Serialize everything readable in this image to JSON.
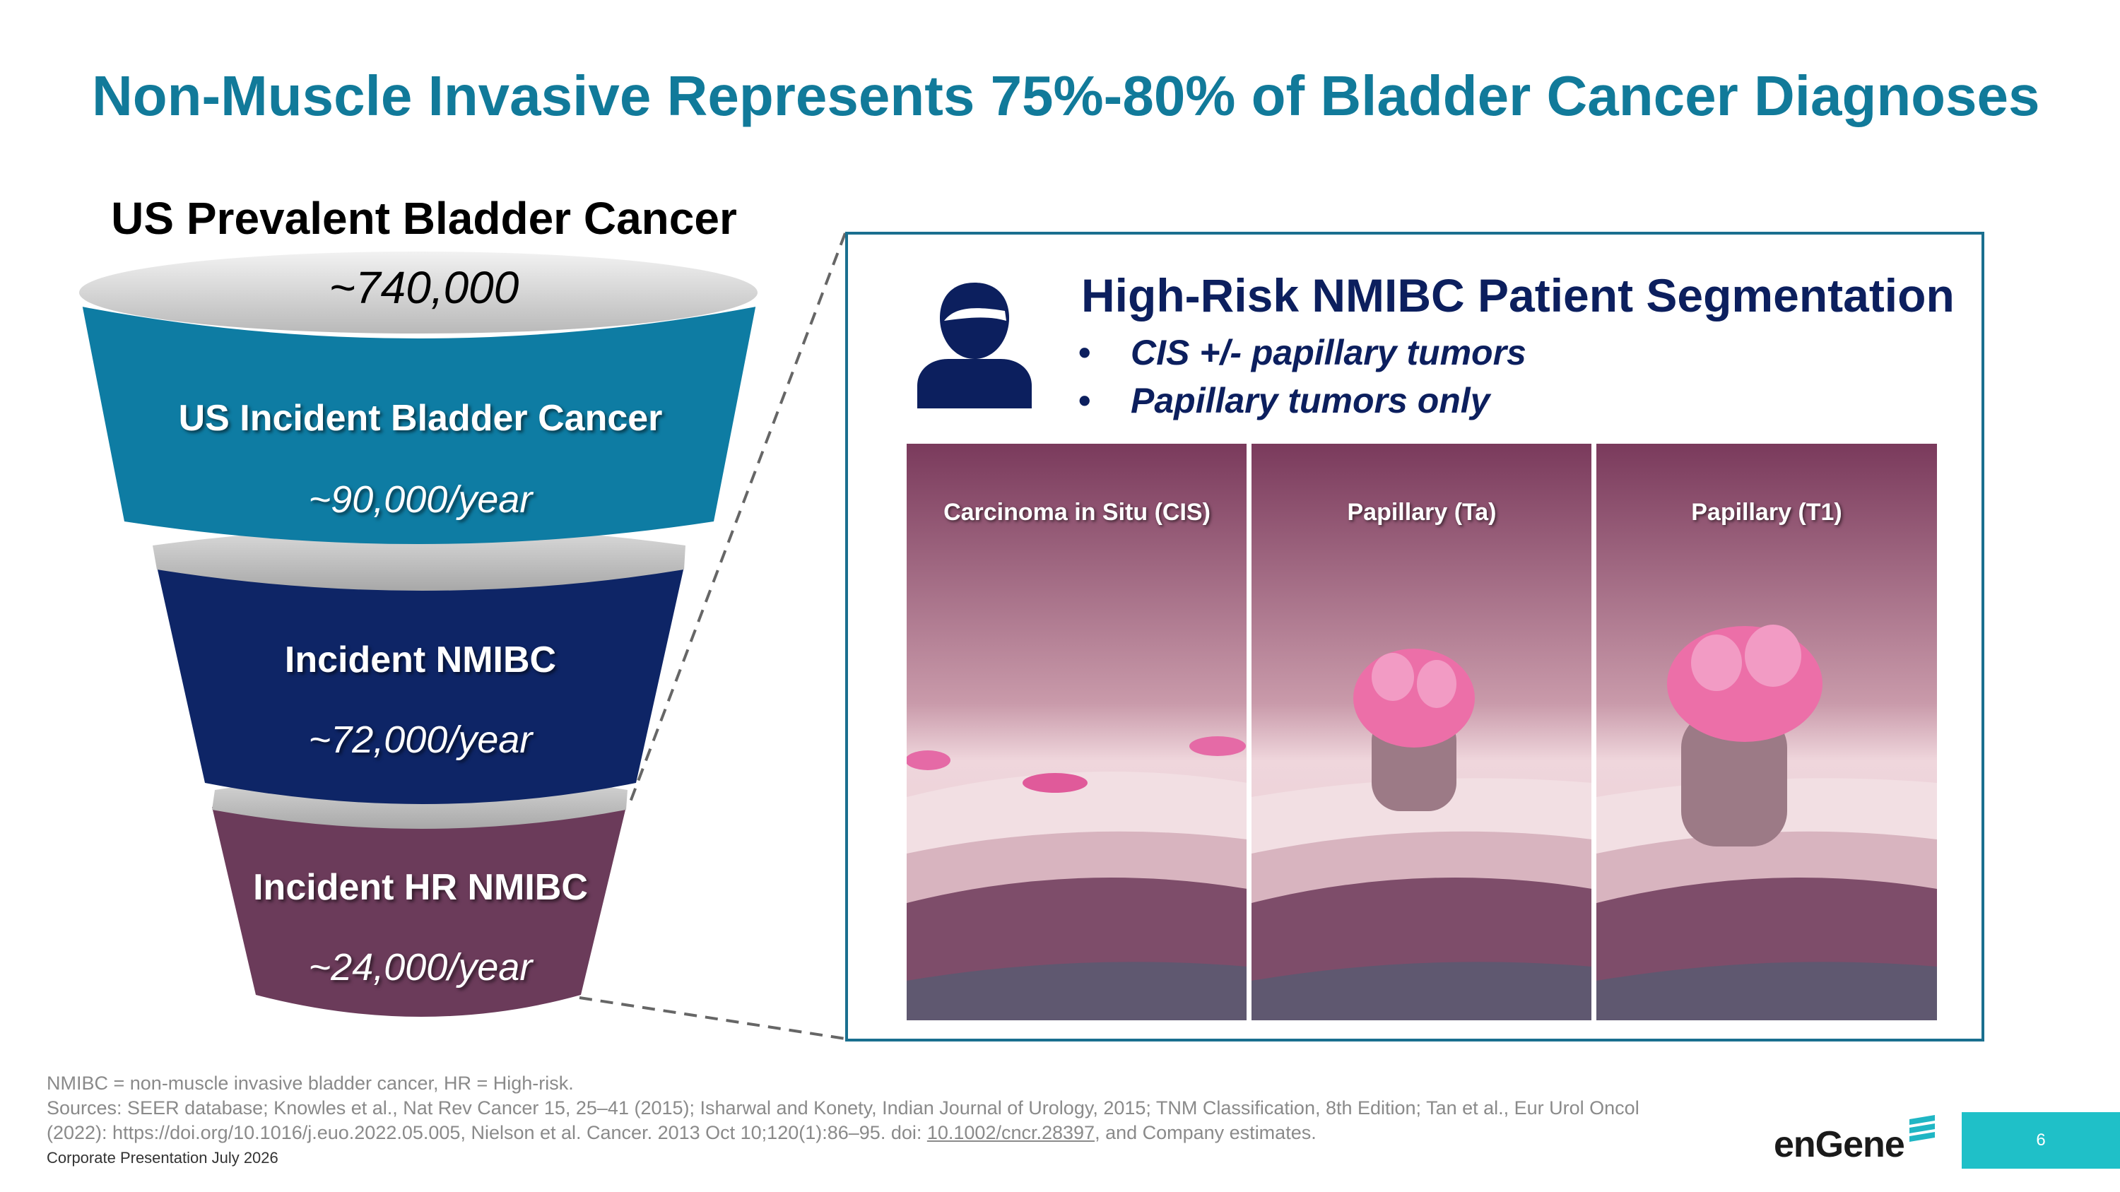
{
  "slide": {
    "title": "Non-Muscle Invasive Represents 75%-80% of Bladder Cancer Diagnoses"
  },
  "funnel": {
    "heading": "US Prevalent Bladder Cancer",
    "prevalent_value": "~740,000",
    "tiers": [
      {
        "label": "US Incident Bladder Cancer",
        "value": "~90,000/year",
        "color": "#0e7ca3"
      },
      {
        "label": "Incident NMIBC",
        "value": "~72,000/year",
        "color": "#0e2566"
      },
      {
        "label": "Incident HR NMIBC",
        "value": "~24,000/year",
        "color": "#6b3b5a"
      }
    ]
  },
  "segmentation": {
    "title": "High-Risk NMIBC Patient Segmentation",
    "bullets": [
      "CIS +/- papillary tumors",
      "Papillary tumors only"
    ],
    "bullet_symbol": "•",
    "icon": "person-icon",
    "images": [
      {
        "label": "Carcinoma in Situ (CIS)"
      },
      {
        "label": "Papillary (Ta)"
      },
      {
        "label": "Papillary (T1)"
      }
    ]
  },
  "footer": {
    "footnote_line1": "NMIBC = non-muscle invasive bladder cancer, HR = High-risk.",
    "footnote_line2": "Sources: SEER database; Knowles et al., Nat Rev Cancer 15, 25–41 (2015); Isharwal and Konety, Indian Journal of Urology, 2015; TNM Classification, 8th Edition; Tan et al., Eur Urol Oncol",
    "footnote_line3_pre": "(2022): https://doi.org/10.1016/j.euo.2022.05.005, Nielson et al. Cancer. 2013 Oct 10;120(1):86–95. doi: ",
    "footnote_link": "10.1002/cncr.28397",
    "footnote_line3_post": ", and Company estimates.",
    "corporate": "Corporate Presentation July 2026",
    "logo": "enGene",
    "page_number": "6"
  },
  "colors": {
    "title": "#117a9a",
    "navy": "#0c1f5e",
    "accent_teal": "#1fc0c8"
  }
}
